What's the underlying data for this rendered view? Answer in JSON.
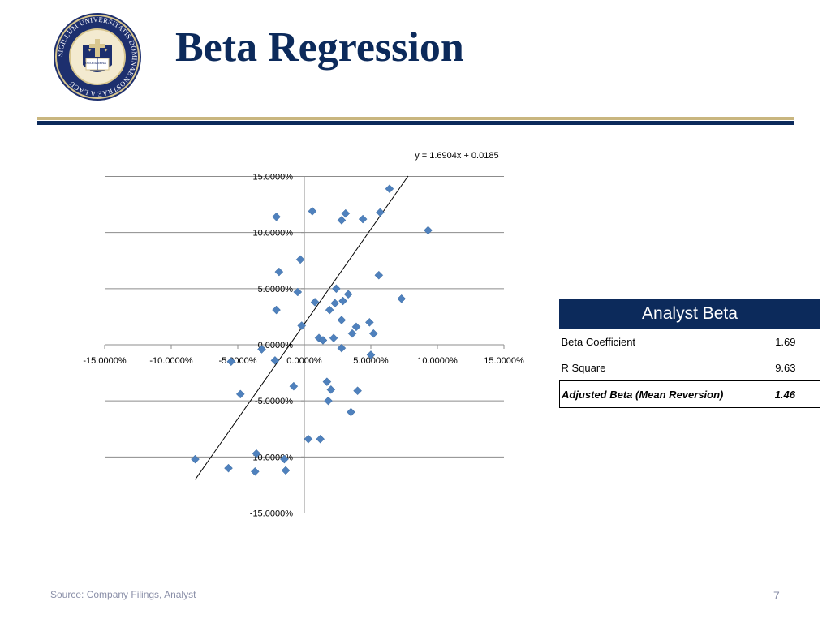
{
  "slide": {
    "title": "Beta Regression",
    "source": "Source: Company Filings, Analyst",
    "page_number": "7",
    "colors": {
      "navy": "#0c2a5b",
      "gold": "#c9b67f",
      "marker": "#4f81bd"
    }
  },
  "seal": {
    "ring_text": "SIGILLUM UNIVERSITATIS DOMINAE NOSTRAE A LACU",
    "book_text_left": "VITA DULCEDO",
    "book_text_right": "SPES"
  },
  "chart_data": {
    "type": "scatter",
    "title": "",
    "xlabel": "",
    "ylabel": "",
    "xlim": [
      -0.15,
      0.15
    ],
    "ylim": [
      -0.15,
      0.15
    ],
    "grid": "horizontal",
    "x_ticks": [
      -0.15,
      -0.1,
      -0.05,
      0.0,
      0.05,
      0.1,
      0.15
    ],
    "y_ticks": [
      -0.15,
      -0.1,
      -0.05,
      0.0,
      0.05,
      0.1,
      0.15
    ],
    "x_tick_labels": [
      "-15.0000%",
      "-10.0000%",
      "-5.0000%",
      "0.0000%",
      "5.0000%",
      "10.0000%",
      "15.0000%"
    ],
    "y_tick_labels": [
      "-15.0000%",
      "-10.0000%",
      "-5.0000%",
      "0.0000%",
      "5.0000%",
      "10.0000%",
      "15.0000%"
    ],
    "trendline": {
      "slope": 1.6904,
      "intercept": 0.0185,
      "x_range": [
        -0.082,
        0.078
      ],
      "equation": "y = 1.6904x + 0.0185"
    },
    "series": [
      {
        "marker": "diamond",
        "points": [
          [
            0.064,
            0.139
          ],
          [
            0.057,
            0.118
          ],
          [
            0.031,
            0.117
          ],
          [
            0.006,
            0.119
          ],
          [
            -0.021,
            0.114
          ],
          [
            0.044,
            0.112
          ],
          [
            0.028,
            0.111
          ],
          [
            0.093,
            0.102
          ],
          [
            -0.003,
            0.076
          ],
          [
            -0.019,
            0.065
          ],
          [
            0.056,
            0.062
          ],
          [
            0.024,
            0.05
          ],
          [
            -0.005,
            0.047
          ],
          [
            0.033,
            0.045
          ],
          [
            0.073,
            0.041
          ],
          [
            0.029,
            0.039
          ],
          [
            0.008,
            0.038
          ],
          [
            0.023,
            0.037
          ],
          [
            0.019,
            0.031
          ],
          [
            -0.021,
            0.031
          ],
          [
            0.028,
            0.022
          ],
          [
            0.049,
            0.02
          ],
          [
            -0.002,
            0.017
          ],
          [
            0.039,
            0.016
          ],
          [
            0.036,
            0.01
          ],
          [
            0.052,
            0.01
          ],
          [
            0.011,
            0.006
          ],
          [
            0.022,
            0.006
          ],
          [
            0.014,
            0.004
          ],
          [
            0.028,
            -0.003
          ],
          [
            -0.032,
            -0.004
          ],
          [
            0.05,
            -0.009
          ],
          [
            -0.022,
            -0.014
          ],
          [
            -0.055,
            -0.015
          ],
          [
            0.017,
            -0.033
          ],
          [
            -0.008,
            -0.037
          ],
          [
            0.02,
            -0.04
          ],
          [
            0.04,
            -0.041
          ],
          [
            -0.048,
            -0.044
          ],
          [
            0.018,
            -0.05
          ],
          [
            0.035,
            -0.06
          ],
          [
            0.003,
            -0.084
          ],
          [
            0.012,
            -0.084
          ],
          [
            -0.036,
            -0.097
          ],
          [
            -0.015,
            -0.102
          ],
          [
            -0.082,
            -0.102
          ],
          [
            -0.057,
            -0.11
          ],
          [
            -0.014,
            -0.112
          ],
          [
            -0.037,
            -0.113
          ]
        ]
      }
    ]
  },
  "table": {
    "header": "Analyst Beta",
    "rows": [
      {
        "label": "Beta Coefficient",
        "value": "1.69"
      },
      {
        "label": "R Square",
        "value": "9.63"
      }
    ],
    "adjusted": {
      "label": "Adjusted Beta (Mean Reversion)",
      "value": "1.46"
    }
  }
}
